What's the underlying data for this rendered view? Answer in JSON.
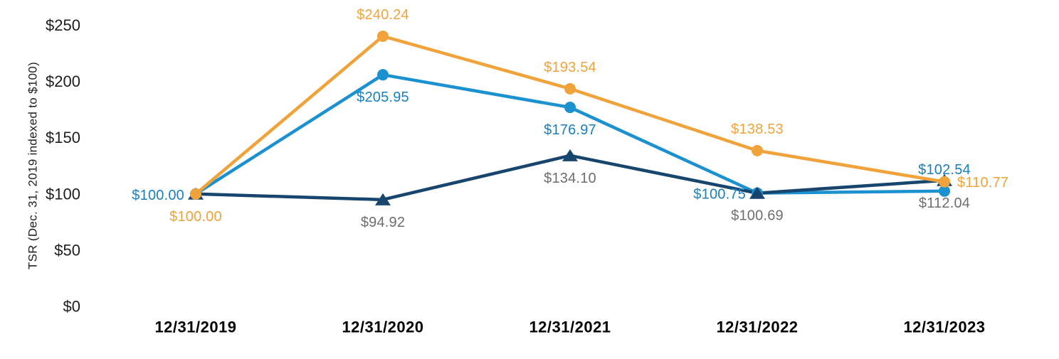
{
  "chart_data": {
    "type": "line",
    "title": "",
    "xlabel": "",
    "ylabel": "TSR (Dec. 31, 2019 indexed to $100)",
    "categories": [
      "12/31/2019",
      "12/31/2020",
      "12/31/2021",
      "12/31/2022",
      "12/31/2023"
    ],
    "y_axis": {
      "ticks": [
        0,
        50,
        100,
        150,
        200,
        250
      ],
      "tick_labels": [
        "$0",
        "$50",
        "$100",
        "$150",
        "$200",
        "$250"
      ],
      "range": [
        0,
        250
      ]
    },
    "grid": false,
    "legend": "none",
    "colors": {
      "axis_text": "#1e1e1e",
      "x_tick_text": "#000000",
      "background": "#ffffff"
    },
    "series": [
      {
        "name": "series-light-blue",
        "color": "#1b91d0",
        "label_color": "#1a7fbe",
        "marker": "circle",
        "values": [
          100.0,
          205.95,
          176.97,
          100.75,
          102.54
        ],
        "point_labels": [
          {
            "text": "$100.00",
            "pos": "left"
          },
          {
            "text": "$205.95",
            "pos": "below"
          },
          {
            "text": "$176.97",
            "pos": "below"
          },
          {
            "text": "$100.75",
            "pos": "left"
          },
          {
            "text": "$102.54",
            "pos": "above"
          }
        ]
      },
      {
        "name": "series-dark-navy",
        "color": "#17456e",
        "label_color": "#6d6e71",
        "marker": "triangle",
        "values": [
          100.0,
          94.92,
          134.1,
          100.69,
          112.04
        ],
        "point_labels": [
          null,
          {
            "text": "$94.92",
            "pos": "below"
          },
          {
            "text": "$134.10",
            "pos": "below"
          },
          {
            "text": "$100.69",
            "pos": "below"
          },
          {
            "text": "$112.04",
            "pos": "below"
          }
        ]
      },
      {
        "name": "series-orange",
        "color": "#f0a33a",
        "label_color": "#f0a33a",
        "marker": "circle",
        "values": [
          100.0,
          240.24,
          193.54,
          138.53,
          110.77
        ],
        "point_labels": [
          {
            "text": "$100.00",
            "pos": "below"
          },
          {
            "text": "$240.24",
            "pos": "above"
          },
          {
            "text": "$193.54",
            "pos": "above"
          },
          {
            "text": "$138.53",
            "pos": "above"
          },
          {
            "text": "$110.77",
            "pos": "right"
          }
        ]
      }
    ]
  }
}
